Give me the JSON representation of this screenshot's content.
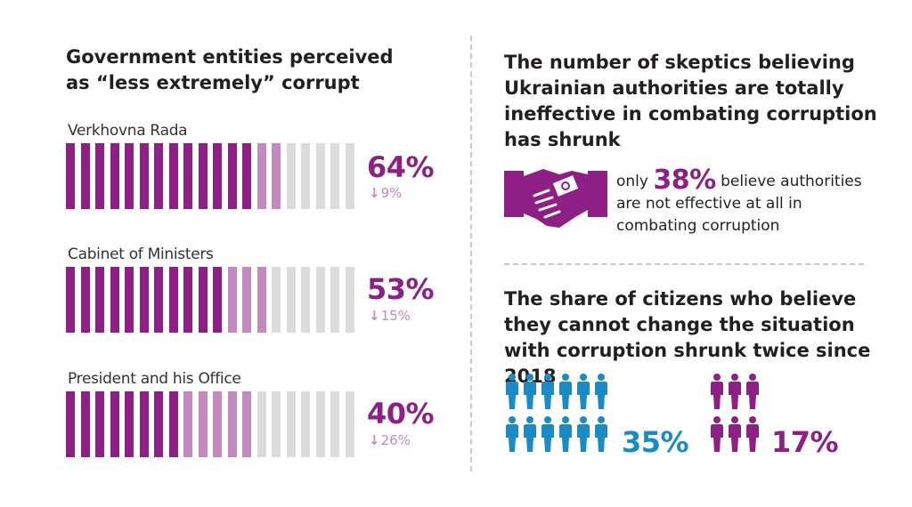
{
  "left": {
    "title": "Government entities perceived as “less extremely” corrupt",
    "entities": [
      {
        "name": "Verkhovna Rada",
        "value_label": "64%",
        "change_label": "9%",
        "value": 64,
        "change": -9
      },
      {
        "name": "Cabinet of Ministers",
        "value_label": "53%",
        "change_label": "15%",
        "value": 53,
        "change": -15
      },
      {
        "name": "President and his Office",
        "value_label": "40%",
        "change_label": "26%",
        "value": 40,
        "change": -26
      }
    ]
  },
  "right": {
    "title1": "The number of skeptics believing Ukrainian authorities are totally ineffective in combating corruption has shrunk",
    "skeptics": {
      "prefix": "only",
      "value_label": "38%",
      "suffix": "believe authorities are not effective at all in combating corruption",
      "value": 38
    },
    "title2": "The share of citizens who believe they cannot change the situation with corruption shrunk twice since 2018",
    "comparison": [
      {
        "value_label": "35%",
        "value": 35,
        "color": "#1a8bc4"
      },
      {
        "value_label": "17%",
        "value": 17,
        "color": "#8e1f85"
      }
    ]
  },
  "chart_data": {
    "type": "bar",
    "categories": [
      "Verkhovna Rada",
      "Cabinet of Ministers",
      "President and his Office"
    ],
    "values": [
      64,
      53,
      40
    ],
    "change": [
      -9,
      -15,
      -26
    ],
    "ylim": [
      0,
      100
    ]
  },
  "colors": {
    "current": "#8e1f85",
    "change": "#c489c0",
    "empty": "#dcdcdc",
    "blue": "#1a8bc4",
    "purple": "#8e1f85"
  }
}
